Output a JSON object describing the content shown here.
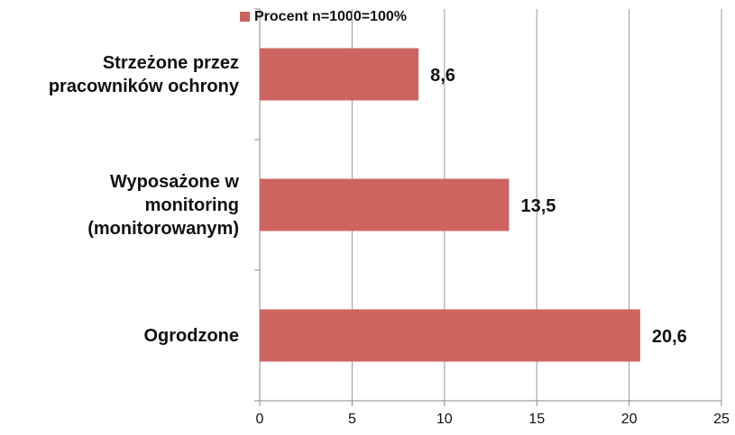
{
  "chart_data": {
    "type": "bar",
    "orientation": "horizontal",
    "categories": [
      "Strzeżone przez\npracowników ochrony",
      "Wyposażone w\nmonitoring\n(monitorowanym)",
      "Ogrodzone"
    ],
    "series": [
      {
        "name": "Procent n=1000=100%",
        "color": "#cd6460",
        "values": [
          8.6,
          13.5,
          20.6
        ],
        "value_labels": [
          "8,6",
          "13,5",
          "20,6"
        ]
      }
    ],
    "xlim": [
      0,
      25
    ],
    "xticks": [
      0,
      5,
      10,
      15,
      20,
      25
    ],
    "grid": true,
    "legend": "top"
  }
}
